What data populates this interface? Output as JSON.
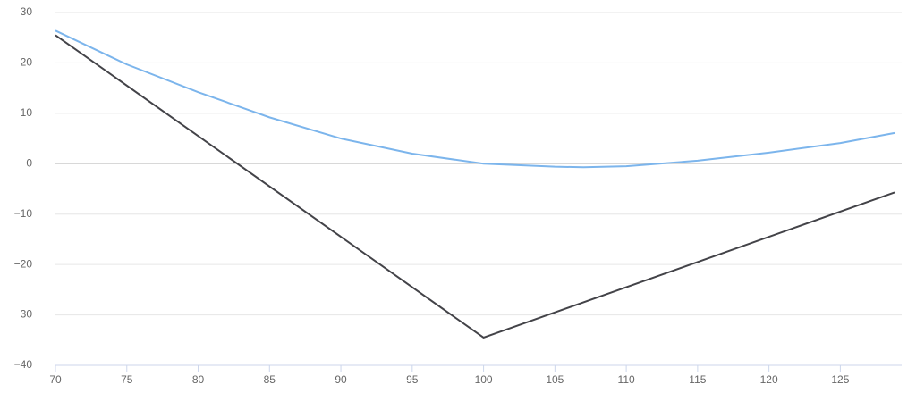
{
  "chart_data": {
    "type": "line",
    "series": [
      {
        "color": "#7cb5ec",
        "x": [
          70,
          75,
          80,
          85,
          90,
          95,
          100,
          105,
          107,
          110,
          115,
          120,
          125,
          128.8
        ],
        "values": [
          26.4,
          19.7,
          14.2,
          9.2,
          5.0,
          2.0,
          0,
          -0.6,
          -0.7,
          -0.5,
          0.6,
          2.2,
          4.1,
          6.1
        ]
      },
      {
        "color": "#434348",
        "x": [
          70,
          100,
          128.8
        ],
        "values": [
          25.5,
          -34.5,
          -5.7
        ]
      }
    ],
    "xlim": [
      70,
      129.3
    ],
    "xticks": [
      70,
      75,
      80,
      85,
      90,
      95,
      100,
      105,
      110,
      115,
      120,
      125
    ],
    "ylim": [
      -40,
      30
    ],
    "yticks": [
      {
        "value": -40,
        "label": "−40"
      },
      {
        "value": -30,
        "label": "−30"
      },
      {
        "value": -20,
        "label": "−20"
      },
      {
        "value": -10,
        "label": "−10"
      },
      0,
      10,
      20,
      30
    ],
    "grid": true
  }
}
